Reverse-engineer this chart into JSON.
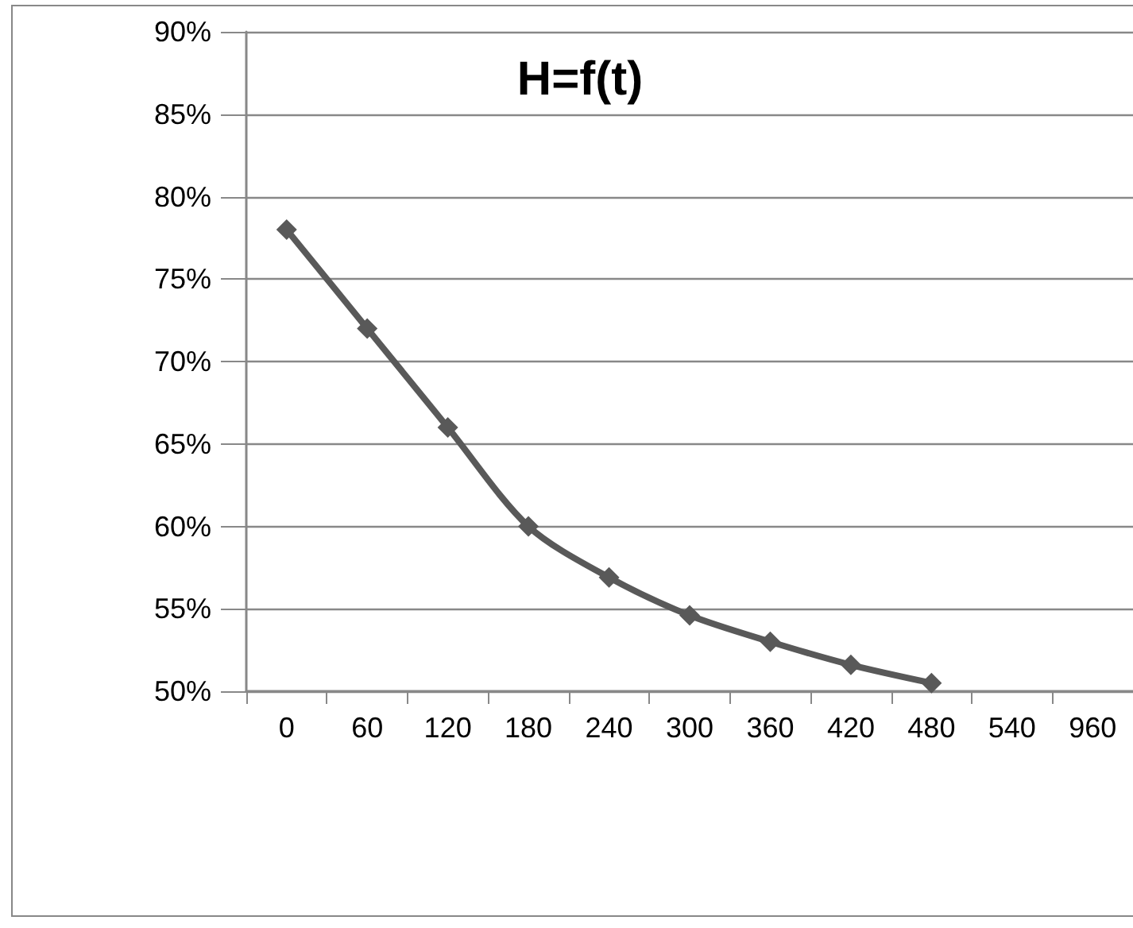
{
  "chart_data": {
    "type": "line",
    "title": "H=f(t)",
    "categories": [
      "0",
      "60",
      "120",
      "180",
      "240",
      "300",
      "360",
      "420",
      "480",
      "540",
      "960"
    ],
    "series": [
      {
        "color": "#595959",
        "values": [
          78,
          72,
          66,
          60,
          56.9,
          54.6,
          53,
          51.6,
          50.5,
          null,
          null
        ]
      }
    ],
    "ylim": [
      50,
      90
    ],
    "yticks": [
      {
        "value": 50,
        "label": "50%"
      },
      {
        "value": 55,
        "label": "55%"
      },
      {
        "value": 60,
        "label": "60%"
      },
      {
        "value": 65,
        "label": "65%"
      },
      {
        "value": 70,
        "label": "70%"
      },
      {
        "value": 75,
        "label": "75%"
      },
      {
        "value": 80,
        "label": "80%"
      },
      {
        "value": 85,
        "label": "85%"
      },
      {
        "value": 90,
        "label": "90%"
      }
    ],
    "grid": "y",
    "marker": "diamond",
    "line_style": "solid"
  }
}
